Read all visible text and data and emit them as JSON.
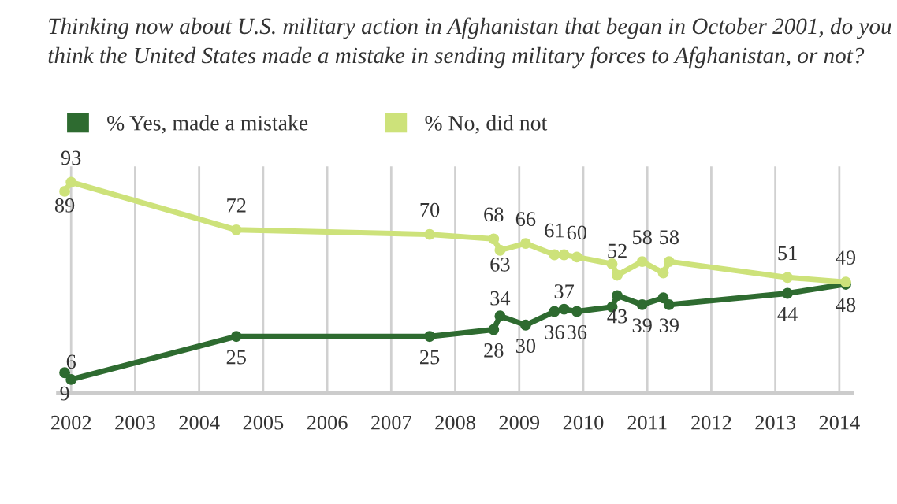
{
  "chart_data": {
    "type": "line",
    "title": "Thinking now about U.S. military action in Afghanistan that began in October 2001, do you think the United States made a mistake in sending military forces to Afghanistan, or not?",
    "xlim": [
      2001.8,
      2014.2
    ],
    "xticks": [
      2002,
      2003,
      2004,
      2005,
      2006,
      2007,
      2008,
      2009,
      2010,
      2011,
      2012,
      2013,
      2014
    ],
    "ylim": [
      0,
      100
    ],
    "grid": "x",
    "legend": "top left",
    "marker": "circle",
    "line_style": "solid",
    "tick_labels": "x",
    "series": [
      {
        "name": "% Yes, made a mistake",
        "color": "#2e6b30",
        "x": [
          2001.9,
          2002.0,
          2004.58,
          2007.6,
          2008.6,
          2008.7,
          2009.1,
          2009.55,
          2009.7,
          2009.9,
          2010.45,
          2010.53,
          2010.92,
          2011.25,
          2011.34,
          2013.19,
          2014.1
        ],
        "values": [
          9,
          6,
          25,
          25,
          28,
          34,
          30,
          36,
          37,
          36,
          38,
          43,
          39,
          42,
          39,
          44,
          48
        ],
        "value_labels": [
          "9",
          "6",
          "25",
          "25",
          "28",
          "34",
          "30",
          "36",
          "37",
          "36",
          null,
          "43",
          "39",
          null,
          "39",
          "44",
          "48"
        ]
      },
      {
        "name": "% No, did not",
        "color": "#cde27a",
        "x": [
          2001.9,
          2002.0,
          2004.58,
          2007.6,
          2008.6,
          2008.7,
          2009.1,
          2009.55,
          2009.7,
          2009.9,
          2010.45,
          2010.53,
          2010.92,
          2011.25,
          2011.34,
          2013.19,
          2014.1
        ],
        "values": [
          89,
          93,
          72,
          70,
          68,
          63,
          66,
          61,
          61,
          60,
          57,
          52,
          58,
          53,
          58,
          51,
          49
        ],
        "value_labels": [
          "89",
          "93",
          "72",
          "70",
          "68",
          "63",
          "66",
          "61",
          null,
          "60",
          null,
          "52",
          "58",
          null,
          "58",
          "51",
          "49"
        ]
      }
    ]
  }
}
